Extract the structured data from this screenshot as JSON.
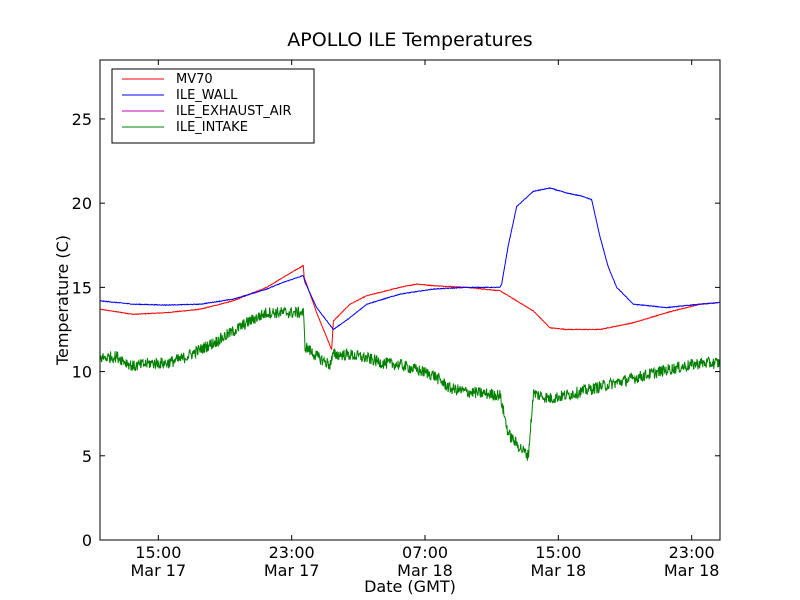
{
  "chart_data": {
    "type": "line",
    "title": "APOLLO ILE Temperatures",
    "xlabel": "Date (GMT)",
    "ylabel": "Temperature (C)",
    "x_unit": "hours from Mar 17 11:30 GMT",
    "xlim": [
      0,
      37.2
    ],
    "ylim": [
      0,
      28.5
    ],
    "yticks": [
      0,
      5,
      10,
      15,
      20,
      25
    ],
    "xticks": [
      {
        "x": 3.5,
        "time": "15:00",
        "date": "Mar 17"
      },
      {
        "x": 11.5,
        "time": "23:00",
        "date": "Mar 17"
      },
      {
        "x": 19.5,
        "time": "07:00",
        "date": "Mar 18"
      },
      {
        "x": 27.5,
        "time": "15:00",
        "date": "Mar 18"
      },
      {
        "x": 35.5,
        "time": "23:00",
        "date": "Mar 18"
      }
    ],
    "grid": false,
    "legend_position": "top-left",
    "series": [
      {
        "name": "MV70",
        "color": "#ff0000",
        "noise": 0.02,
        "x": [
          0,
          2,
          4,
          6,
          8,
          10,
          11,
          12.2,
          12.25,
          13,
          13.9,
          14,
          15,
          16,
          18,
          19,
          20,
          22,
          24,
          26,
          27,
          28,
          30,
          32,
          34,
          36,
          37.2
        ],
        "y": [
          13.7,
          13.4,
          13.5,
          13.7,
          14.2,
          15.0,
          15.6,
          16.3,
          15.6,
          13.5,
          11.3,
          13.0,
          14.0,
          14.5,
          15.0,
          15.2,
          15.1,
          15.0,
          14.8,
          13.6,
          12.6,
          12.5,
          12.5,
          12.9,
          13.5,
          14.0,
          14.1
        ]
      },
      {
        "name": "ILE_WALL",
        "color": "#0000ff",
        "noise": 0.02,
        "x": [
          0,
          2,
          4,
          6,
          8,
          10,
          11,
          12.2,
          12.3,
          13,
          14,
          15,
          16,
          18,
          20,
          22,
          24,
          24.1,
          24.5,
          25,
          26,
          27,
          28,
          29,
          29.5,
          30,
          30.5,
          31,
          32,
          34,
          36,
          37.2
        ],
        "y": [
          14.2,
          14.0,
          13.95,
          14.0,
          14.3,
          14.9,
          15.3,
          15.7,
          15.3,
          13.8,
          12.5,
          13.2,
          14.0,
          14.6,
          14.9,
          15.0,
          15.0,
          15.2,
          17.5,
          19.8,
          20.7,
          20.9,
          20.6,
          20.4,
          20.2,
          18.0,
          16.2,
          15.0,
          14.0,
          13.8,
          14.0,
          14.1
        ]
      },
      {
        "name": "ILE_EXHAUST_AIR",
        "color": "#bf00bf",
        "noise": 0.02,
        "x": [
          0,
          37.2
        ],
        "y": [
          null,
          null
        ]
      },
      {
        "name": "ILE_INTAKE",
        "color": "#008000",
        "noise": 0.35,
        "x": [
          0,
          1,
          2,
          3,
          4,
          5,
          6,
          7,
          8,
          9,
          10,
          11,
          11.5,
          12.2,
          12.3,
          13,
          13.8,
          14,
          15,
          16,
          17,
          18,
          19,
          20,
          21,
          22,
          23,
          24,
          24.5,
          25,
          25.5,
          25.7,
          26,
          27,
          28,
          30,
          32,
          34,
          36,
          37.2
        ],
        "y": [
          10.8,
          10.9,
          10.3,
          10.5,
          10.5,
          10.8,
          11.3,
          11.8,
          12.4,
          13.0,
          13.5,
          13.5,
          13.5,
          13.5,
          11.5,
          10.9,
          10.4,
          11.0,
          11.0,
          10.8,
          10.5,
          10.4,
          10.1,
          9.8,
          9.0,
          8.8,
          8.7,
          8.6,
          6.3,
          5.7,
          5.2,
          5.0,
          8.7,
          8.4,
          8.6,
          9.1,
          9.6,
          10.1,
          10.5,
          10.5
        ]
      }
    ]
  }
}
